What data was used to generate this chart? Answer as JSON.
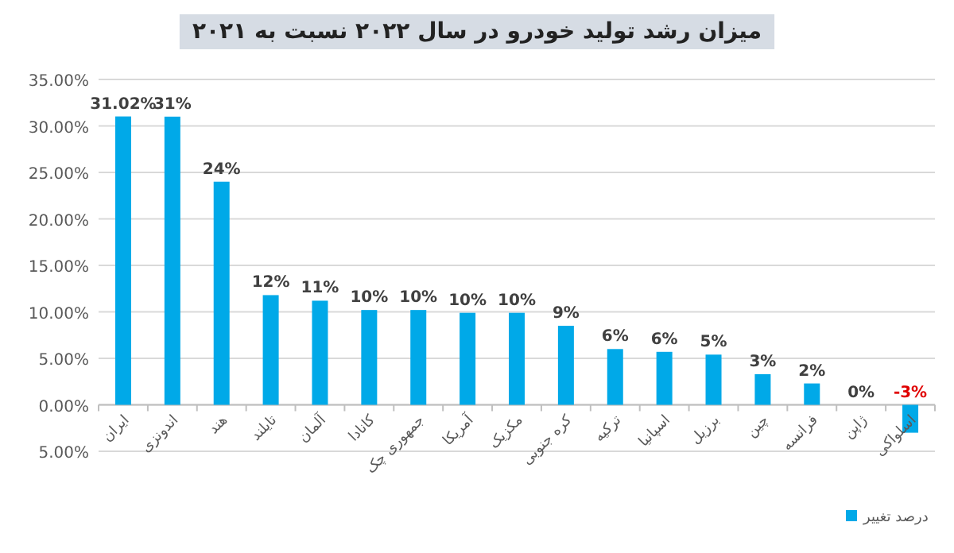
{
  "chart_data": {
    "type": "bar",
    "title": "میزان رشد تولید خودرو در سال ۲۰۲۲ نسبت به ۲۰۲۱",
    "categories": [
      "ایران",
      "اندونزی",
      "هند",
      "تایلند",
      "آلمان",
      "کانادا",
      "جمهوری چک",
      "آمریکا",
      "مکزیک",
      "کره جنوبی",
      "ترکیه",
      "اسپانیا",
      "برزیل",
      "چین",
      "فرانسه",
      "ژاپن",
      "اسلواکی"
    ],
    "series": [
      {
        "name": "درصد تغییر",
        "color": "#00a9e8",
        "values": [
          31.02,
          31,
          24,
          11.8,
          11.2,
          10.2,
          10.2,
          9.9,
          9.9,
          8.5,
          6.0,
          5.7,
          5.4,
          3.3,
          2.3,
          0,
          -3.0
        ],
        "value_labels": [
          "31.02%",
          "31%",
          "24%",
          "12%",
          "11%",
          "10%",
          "10%",
          "10%",
          "10%",
          "9%",
          "6%",
          "6%",
          "5%",
          "3%",
          "2%",
          "0%",
          "-3%"
        ]
      }
    ],
    "ylim": [
      -5,
      35
    ],
    "yticks": [
      {
        "value": -5,
        "label": "5.00%"
      },
      {
        "value": 0,
        "label": "0.00%"
      },
      {
        "value": 5,
        "label": "5.00%"
      },
      {
        "value": 10,
        "label": "10.00%"
      },
      {
        "value": 15,
        "label": "15.00%"
      },
      {
        "value": 20,
        "label": "20.00%"
      },
      {
        "value": 25,
        "label": "25.00%"
      },
      {
        "value": 30,
        "label": "30.00%"
      },
      {
        "value": 35,
        "label": "35.00%"
      }
    ],
    "grid": "y",
    "legend": "bottom right"
  }
}
